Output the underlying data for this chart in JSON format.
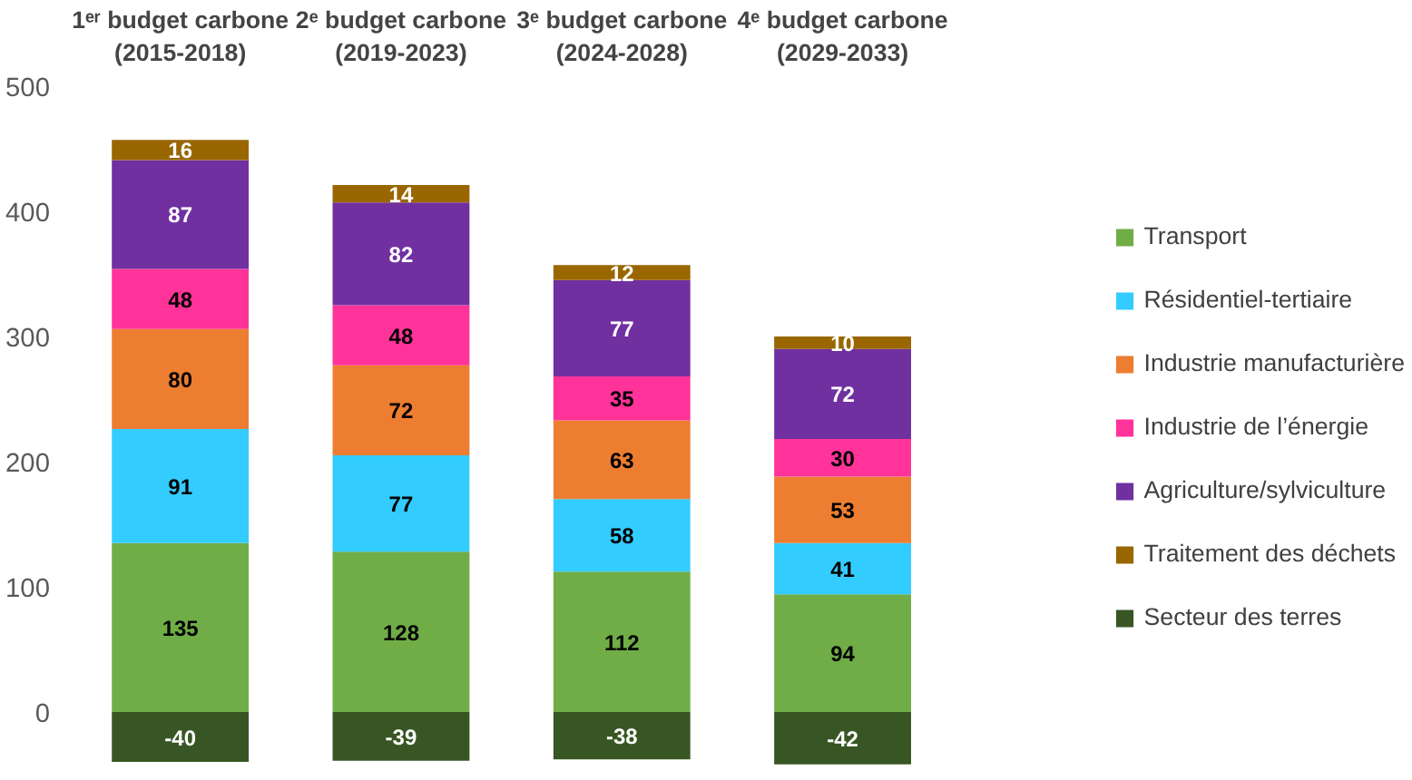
{
  "chart_data": {
    "type": "bar",
    "stacked": true,
    "categories": [
      "1ᵉʳ budget carbone\n(2015-2018)",
      "2ᵉ budget carbone\n(2019-2023)",
      "3ᵉ budget carbone\n(2024-2028)",
      "4ᵉ budget carbone\n(2029-2033)"
    ],
    "series": [
      {
        "name": "Transport",
        "color": "#70ad47",
        "values": [
          135,
          128,
          112,
          94
        ]
      },
      {
        "name": "Résidentiel-tertiaire",
        "color": "#33ccff",
        "values": [
          91,
          77,
          58,
          41
        ]
      },
      {
        "name": "Industrie manufacturière",
        "color": "#ed7d31",
        "values": [
          80,
          72,
          63,
          53
        ]
      },
      {
        "name": "Industrie de l’énergie",
        "color": "#ff3399",
        "values": [
          48,
          48,
          35,
          30
        ]
      },
      {
        "name": "Agriculture/sylviculture",
        "color": "#7030a0",
        "values": [
          87,
          82,
          77,
          72
        ]
      },
      {
        "name": "Traitement des déchets",
        "color": "#996600",
        "values": [
          16,
          14,
          12,
          10
        ]
      },
      {
        "name": "Secteur des terres",
        "color": "#375623",
        "values": [
          -40,
          -39,
          -38,
          -42
        ]
      }
    ],
    "ylim": [
      -45,
      500
    ],
    "yticks": [
      0,
      100,
      200,
      300,
      400,
      500
    ],
    "grid": false,
    "legend": "right",
    "data_labels": true
  }
}
